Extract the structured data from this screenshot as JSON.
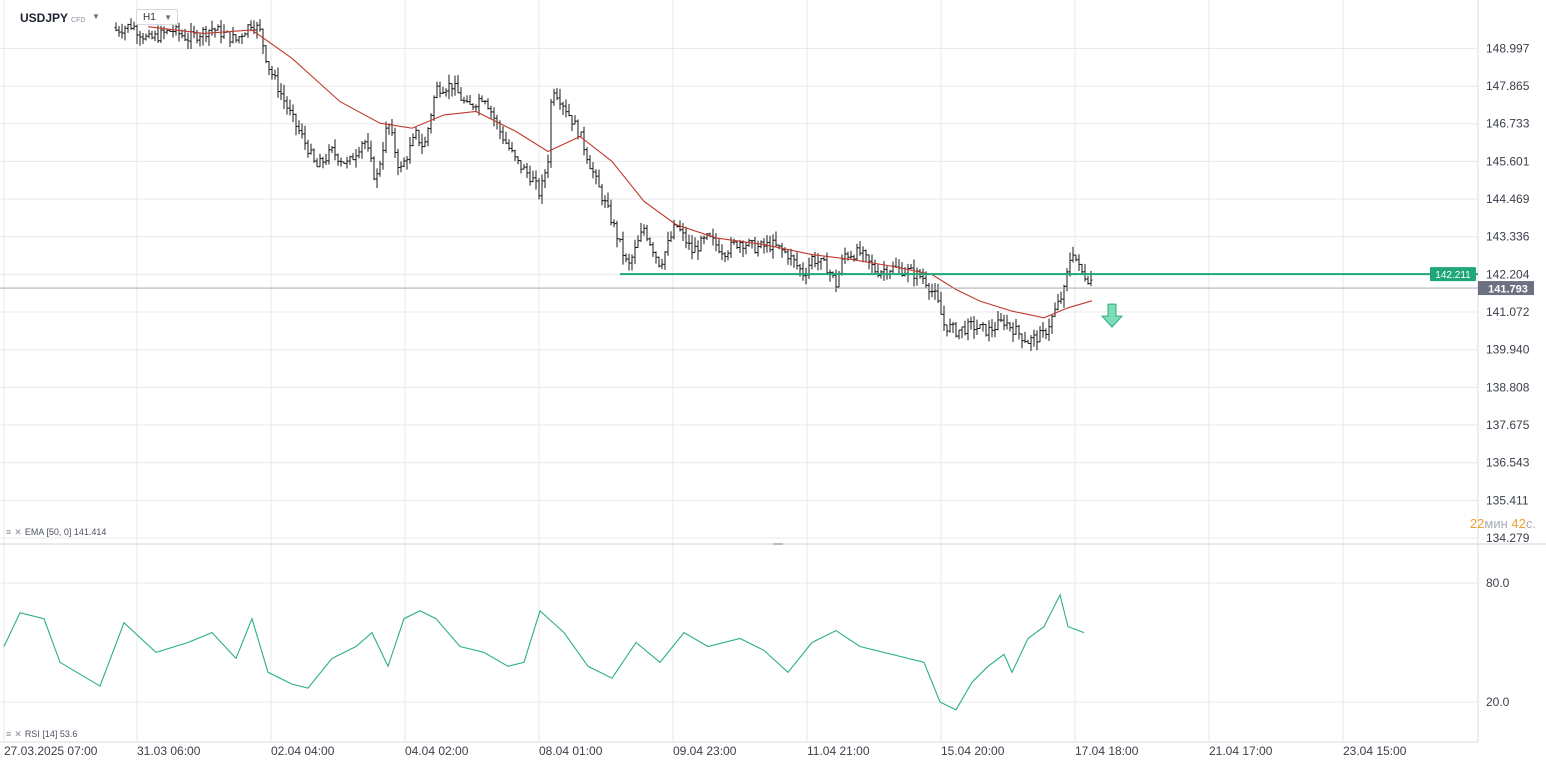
{
  "symbol": "USDJPY",
  "instrument_type": "CFD",
  "timeframe": "H1",
  "indicators": {
    "ema": {
      "name": "EMA",
      "params": "[50, 0]",
      "value": "141.414"
    },
    "rsi": {
      "name": "RSI",
      "params": "[14]",
      "value": "53.6"
    }
  },
  "countdown": {
    "minutes": "22",
    "min_unit": "мин",
    "seconds": "42",
    "sec_unit": "с."
  },
  "colors": {
    "candles": "#1a1a1a",
    "ema": "#c0392b",
    "rsi": "#2ab07f",
    "level": "#1fa67a",
    "price_tag": "#6b7180",
    "grid": "#e6e8eb"
  },
  "icons": {
    "sell_signal": "down-arrow-icon",
    "indicator_menu": "menu-icon",
    "indicator_close": "close-icon"
  },
  "chart_data": {
    "type": "candlestick",
    "price_axis": {
      "min": 134.279,
      "max": 150.0,
      "ticks": [
        "148.997",
        "147.865",
        "146.733",
        "145.601",
        "144.469",
        "143.336",
        "142.204",
        "141.072",
        "139.940",
        "138.808",
        "137.675",
        "136.543",
        "135.411",
        "134.279"
      ]
    },
    "time_axis": {
      "ticks": [
        "27.03.2025  07:00",
        "31.03  06:00",
        "02.04  04:00",
        "04.04  02:00",
        "08.04  01:00",
        "09.04  23:00",
        "11.04  21:00",
        "15.04  20:00",
        "17.04  18:00",
        "21.04  17:00",
        "23.04  15:00"
      ]
    },
    "price_path": [
      {
        "t": 0.0,
        "p": 149.7
      },
      {
        "t": 0.12,
        "p": 149.4
      },
      {
        "t": 0.16,
        "p": 148.9
      },
      {
        "t": 0.24,
        "p": 149.4
      },
      {
        "t": 0.32,
        "p": 149.7
      },
      {
        "t": 0.36,
        "p": 149.25
      },
      {
        "t": 0.42,
        "p": 149.55
      },
      {
        "t": 0.46,
        "p": 149.3
      },
      {
        "t": 0.52,
        "p": 149.6
      },
      {
        "t": 0.58,
        "p": 149.25
      },
      {
        "t": 0.62,
        "p": 149.8
      },
      {
        "t": 0.64,
        "p": 149.5
      },
      {
        "t": 0.66,
        "p": 148.5
      },
      {
        "t": 0.72,
        "p": 146.9
      },
      {
        "t": 0.76,
        "p": 146.0
      },
      {
        "t": 0.78,
        "p": 145.4
      },
      {
        "t": 0.82,
        "p": 145.9
      },
      {
        "t": 0.86,
        "p": 145.5
      },
      {
        "t": 0.9,
        "p": 146.3
      },
      {
        "t": 0.93,
        "p": 145.0
      },
      {
        "t": 0.96,
        "p": 146.8
      },
      {
        "t": 0.99,
        "p": 145.3
      },
      {
        "t": 1.03,
        "p": 146.4
      },
      {
        "t": 1.05,
        "p": 146.0
      },
      {
        "t": 1.08,
        "p": 147.8
      },
      {
        "t": 1.12,
        "p": 147.9
      },
      {
        "t": 1.16,
        "p": 147.2
      },
      {
        "t": 1.2,
        "p": 147.6
      },
      {
        "t": 1.24,
        "p": 146.5
      },
      {
        "t": 1.28,
        "p": 145.6
      },
      {
        "t": 1.32,
        "p": 145.1
      },
      {
        "t": 1.34,
        "p": 144.6
      },
      {
        "t": 1.36,
        "p": 145.7
      },
      {
        "t": 1.37,
        "p": 147.9
      },
      {
        "t": 1.4,
        "p": 147.3
      },
      {
        "t": 1.44,
        "p": 146.4
      },
      {
        "t": 1.48,
        "p": 145.0
      },
      {
        "t": 1.52,
        "p": 143.8
      },
      {
        "t": 1.56,
        "p": 142.4
      },
      {
        "t": 1.6,
        "p": 143.6
      },
      {
        "t": 1.64,
        "p": 142.5
      },
      {
        "t": 1.68,
        "p": 143.7
      },
      {
        "t": 1.72,
        "p": 142.9
      },
      {
        "t": 1.76,
        "p": 143.3
      },
      {
        "t": 1.8,
        "p": 142.9
      },
      {
        "t": 1.84,
        "p": 143.2
      },
      {
        "t": 1.88,
        "p": 143.0
      },
      {
        "t": 1.92,
        "p": 143.1
      },
      {
        "t": 1.96,
        "p": 142.8
      },
      {
        "t": 2.0,
        "p": 142.2
      },
      {
        "t": 2.02,
        "p": 142.7
      },
      {
        "t": 2.06,
        "p": 142.4
      },
      {
        "t": 2.08,
        "p": 141.9
      },
      {
        "t": 2.1,
        "p": 142.8
      },
      {
        "t": 2.14,
        "p": 142.85
      },
      {
        "t": 2.18,
        "p": 142.3
      },
      {
        "t": 2.22,
        "p": 142.4
      },
      {
        "t": 2.26,
        "p": 142.3
      },
      {
        "t": 2.3,
        "p": 142.1
      },
      {
        "t": 2.33,
        "p": 141.5
      },
      {
        "t": 2.35,
        "p": 140.7
      },
      {
        "t": 2.38,
        "p": 140.5
      },
      {
        "t": 2.42,
        "p": 140.65
      },
      {
        "t": 2.46,
        "p": 140.5
      },
      {
        "t": 2.5,
        "p": 140.8
      },
      {
        "t": 2.54,
        "p": 140.4
      },
      {
        "t": 2.56,
        "p": 140.2
      },
      {
        "t": 2.6,
        "p": 140.4
      },
      {
        "t": 2.62,
        "p": 140.9
      },
      {
        "t": 2.65,
        "p": 141.7
      },
      {
        "t": 2.67,
        "p": 143.0
      },
      {
        "t": 2.69,
        "p": 142.3
      },
      {
        "t": 2.72,
        "p": 142.0
      }
    ],
    "ema_path": [
      {
        "t": 0.36,
        "p": 149.65
      },
      {
        "t": 0.5,
        "p": 149.45
      },
      {
        "t": 0.62,
        "p": 149.55
      },
      {
        "t": 0.72,
        "p": 148.7
      },
      {
        "t": 0.84,
        "p": 147.4
      },
      {
        "t": 0.94,
        "p": 146.75
      },
      {
        "t": 1.02,
        "p": 146.6
      },
      {
        "t": 1.1,
        "p": 147.0
      },
      {
        "t": 1.18,
        "p": 147.1
      },
      {
        "t": 1.28,
        "p": 146.5
      },
      {
        "t": 1.36,
        "p": 145.9
      },
      {
        "t": 1.44,
        "p": 146.35
      },
      {
        "t": 1.52,
        "p": 145.6
      },
      {
        "t": 1.6,
        "p": 144.4
      },
      {
        "t": 1.68,
        "p": 143.7
      },
      {
        "t": 1.78,
        "p": 143.3
      },
      {
        "t": 1.9,
        "p": 143.1
      },
      {
        "t": 2.02,
        "p": 142.8
      },
      {
        "t": 2.12,
        "p": 142.65
      },
      {
        "t": 2.22,
        "p": 142.45
      },
      {
        "t": 2.32,
        "p": 142.2
      },
      {
        "t": 2.38,
        "p": 141.75
      },
      {
        "t": 2.44,
        "p": 141.4
      },
      {
        "t": 2.52,
        "p": 141.1
      },
      {
        "t": 2.6,
        "p": 140.9
      },
      {
        "t": 2.66,
        "p": 141.2
      },
      {
        "t": 2.72,
        "p": 141.41
      }
    ],
    "rsi_axis": {
      "ticks": [
        "80.0",
        "20.0"
      ],
      "levels": [
        80,
        20
      ]
    },
    "rsi_path": [
      {
        "t": 0.0,
        "p": 48
      },
      {
        "t": 0.04,
        "p": 65
      },
      {
        "t": 0.1,
        "p": 62
      },
      {
        "t": 0.14,
        "p": 40
      },
      {
        "t": 0.24,
        "p": 28
      },
      {
        "t": 0.3,
        "p": 60
      },
      {
        "t": 0.38,
        "p": 45
      },
      {
        "t": 0.46,
        "p": 50
      },
      {
        "t": 0.52,
        "p": 55
      },
      {
        "t": 0.58,
        "p": 42
      },
      {
        "t": 0.62,
        "p": 62
      },
      {
        "t": 0.66,
        "p": 35
      },
      {
        "t": 0.72,
        "p": 29
      },
      {
        "t": 0.76,
        "p": 27
      },
      {
        "t": 0.82,
        "p": 42
      },
      {
        "t": 0.88,
        "p": 48
      },
      {
        "t": 0.92,
        "p": 55
      },
      {
        "t": 0.96,
        "p": 38
      },
      {
        "t": 1.0,
        "p": 62
      },
      {
        "t": 1.04,
        "p": 66
      },
      {
        "t": 1.08,
        "p": 62
      },
      {
        "t": 1.14,
        "p": 48
      },
      {
        "t": 1.2,
        "p": 45
      },
      {
        "t": 1.26,
        "p": 38
      },
      {
        "t": 1.3,
        "p": 40
      },
      {
        "t": 1.34,
        "p": 66
      },
      {
        "t": 1.4,
        "p": 55
      },
      {
        "t": 1.46,
        "p": 38
      },
      {
        "t": 1.52,
        "p": 32
      },
      {
        "t": 1.58,
        "p": 50
      },
      {
        "t": 1.64,
        "p": 40
      },
      {
        "t": 1.7,
        "p": 55
      },
      {
        "t": 1.76,
        "p": 48
      },
      {
        "t": 1.84,
        "p": 52
      },
      {
        "t": 1.9,
        "p": 46
      },
      {
        "t": 1.96,
        "p": 35
      },
      {
        "t": 2.02,
        "p": 50
      },
      {
        "t": 2.08,
        "p": 56
      },
      {
        "t": 2.14,
        "p": 48
      },
      {
        "t": 2.22,
        "p": 44
      },
      {
        "t": 2.3,
        "p": 40
      },
      {
        "t": 2.34,
        "p": 20
      },
      {
        "t": 2.38,
        "p": 16
      },
      {
        "t": 2.42,
        "p": 30
      },
      {
        "t": 2.46,
        "p": 38
      },
      {
        "t": 2.5,
        "p": 44
      },
      {
        "t": 2.52,
        "p": 35
      },
      {
        "t": 2.56,
        "p": 52
      },
      {
        "t": 2.6,
        "p": 58
      },
      {
        "t": 2.64,
        "p": 74
      },
      {
        "t": 2.66,
        "p": 58
      },
      {
        "t": 2.7,
        "p": 55
      }
    ],
    "levels": [
      {
        "name": "support-resistance",
        "value": 142.211,
        "label": "142.211",
        "from_t": 1.54
      }
    ],
    "current_price": {
      "value": 141.793,
      "label": "141.793"
    },
    "signal": {
      "type": "sell",
      "t": 2.77,
      "p": 140.95
    }
  }
}
